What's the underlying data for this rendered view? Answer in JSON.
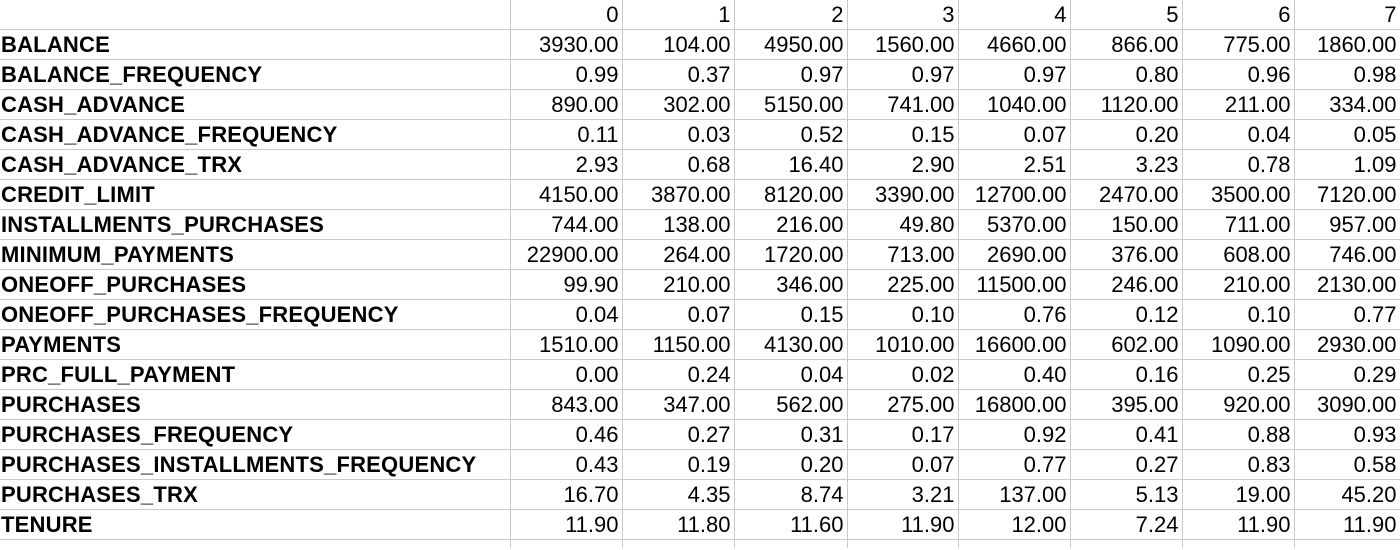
{
  "table": {
    "columns": [
      "",
      "0",
      "1",
      "2",
      "3",
      "4",
      "5",
      "6",
      "7"
    ],
    "rows": [
      {
        "label": "BALANCE",
        "values": [
          "3930.00",
          "104.00",
          "4950.00",
          "1560.00",
          "4660.00",
          "866.00",
          "775.00",
          "1860.00"
        ]
      },
      {
        "label": "BALANCE_FREQUENCY",
        "values": [
          "0.99",
          "0.37",
          "0.97",
          "0.97",
          "0.97",
          "0.80",
          "0.96",
          "0.98"
        ]
      },
      {
        "label": "CASH_ADVANCE",
        "values": [
          "890.00",
          "302.00",
          "5150.00",
          "741.00",
          "1040.00",
          "1120.00",
          "211.00",
          "334.00"
        ]
      },
      {
        "label": "CASH_ADVANCE_FREQUENCY",
        "values": [
          "0.11",
          "0.03",
          "0.52",
          "0.15",
          "0.07",
          "0.20",
          "0.04",
          "0.05"
        ]
      },
      {
        "label": "CASH_ADVANCE_TRX",
        "values": [
          "2.93",
          "0.68",
          "16.40",
          "2.90",
          "2.51",
          "3.23",
          "0.78",
          "1.09"
        ]
      },
      {
        "label": "CREDIT_LIMIT",
        "values": [
          "4150.00",
          "3870.00",
          "8120.00",
          "3390.00",
          "12700.00",
          "2470.00",
          "3500.00",
          "7120.00"
        ]
      },
      {
        "label": "INSTALLMENTS_PURCHASES",
        "values": [
          "744.00",
          "138.00",
          "216.00",
          "49.80",
          "5370.00",
          "150.00",
          "711.00",
          "957.00"
        ]
      },
      {
        "label": "MINIMUM_PAYMENTS",
        "values": [
          "22900.00",
          "264.00",
          "1720.00",
          "713.00",
          "2690.00",
          "376.00",
          "608.00",
          "746.00"
        ]
      },
      {
        "label": "ONEOFF_PURCHASES",
        "values": [
          "99.90",
          "210.00",
          "346.00",
          "225.00",
          "11500.00",
          "246.00",
          "210.00",
          "2130.00"
        ]
      },
      {
        "label": "ONEOFF_PURCHASES_FREQUENCY",
        "values": [
          "0.04",
          "0.07",
          "0.15",
          "0.10",
          "0.76",
          "0.12",
          "0.10",
          "0.77"
        ]
      },
      {
        "label": "PAYMENTS",
        "values": [
          "1510.00",
          "1150.00",
          "4130.00",
          "1010.00",
          "16600.00",
          "602.00",
          "1090.00",
          "2930.00"
        ]
      },
      {
        "label": "PRC_FULL_PAYMENT",
        "values": [
          "0.00",
          "0.24",
          "0.04",
          "0.02",
          "0.40",
          "0.16",
          "0.25",
          "0.29"
        ]
      },
      {
        "label": "PURCHASES",
        "values": [
          "843.00",
          "347.00",
          "562.00",
          "275.00",
          "16800.00",
          "395.00",
          "920.00",
          "3090.00"
        ]
      },
      {
        "label": "PURCHASES_FREQUENCY",
        "values": [
          "0.46",
          "0.27",
          "0.31",
          "0.17",
          "0.92",
          "0.41",
          "0.88",
          "0.93"
        ]
      },
      {
        "label": "PURCHASES_INSTALLMENTS_FREQUENCY",
        "values": [
          "0.43",
          "0.19",
          "0.20",
          "0.07",
          "0.77",
          "0.27",
          "0.83",
          "0.58"
        ]
      },
      {
        "label": "PURCHASES_TRX",
        "values": [
          "16.70",
          "4.35",
          "8.74",
          "3.21",
          "137.00",
          "5.13",
          "19.00",
          "45.20"
        ]
      },
      {
        "label": "TENURE",
        "values": [
          "11.90",
          "11.80",
          "11.60",
          "11.90",
          "12.00",
          "7.24",
          "11.90",
          "11.90"
        ]
      }
    ]
  },
  "style": {
    "grid_color": "#c9c9c9",
    "text_color": "#000000",
    "background": "#ffffff"
  }
}
